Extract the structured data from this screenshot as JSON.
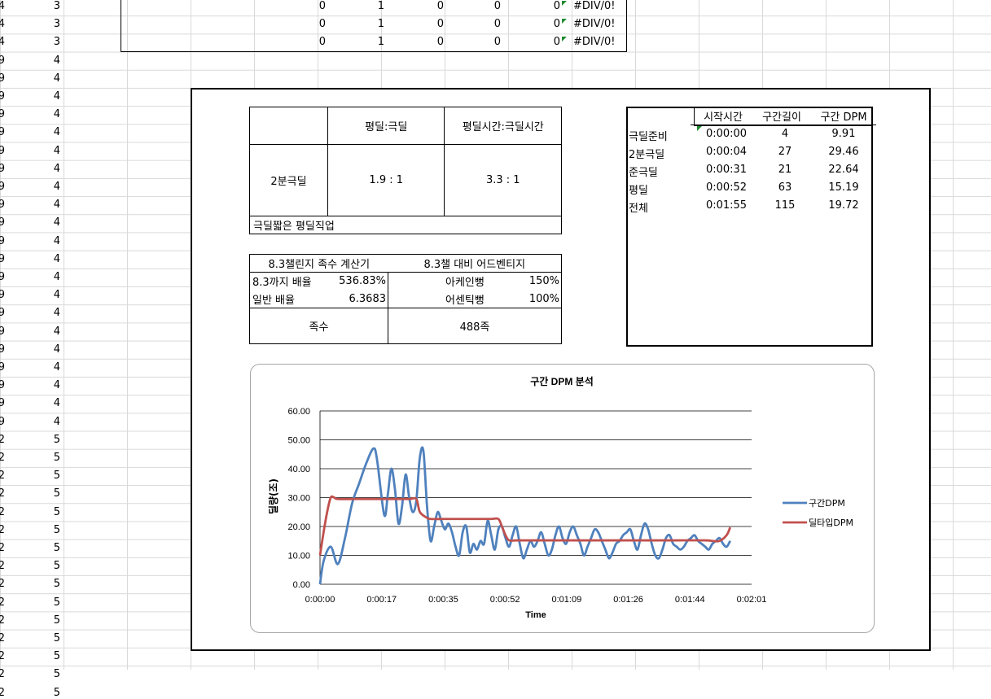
{
  "left_col_a": [
    "4",
    "4",
    "4",
    "9",
    "9",
    "9",
    "9",
    "9",
    "9",
    "9",
    "9",
    "9",
    "9",
    "9",
    "9",
    "9",
    "9",
    "9",
    "9",
    "9",
    "9",
    "9",
    "9",
    "9",
    "2",
    "2",
    "2",
    "2",
    "2",
    "2",
    "2",
    "2",
    "2",
    "2",
    "2",
    "2",
    "2",
    "2",
    "2"
  ],
  "left_col_b": [
    "3",
    "3",
    "3",
    "4",
    "4",
    "4",
    "4",
    "4",
    "4",
    "4",
    "4",
    "4",
    "4",
    "4",
    "4",
    "4",
    "4",
    "4",
    "4",
    "4",
    "4",
    "4",
    "4",
    "4",
    "5",
    "5",
    "5",
    "5",
    "5",
    "5",
    "5",
    "5",
    "5",
    "5",
    "5",
    "5",
    "5",
    "5",
    "5"
  ],
  "top_rows": [
    {
      "c1": "0",
      "c2": "1",
      "c3": "0",
      "c4": "0",
      "c5": "0",
      "err": "#DIV/0!"
    },
    {
      "c1": "0",
      "c2": "1",
      "c3": "0",
      "c4": "0",
      "c5": "0",
      "err": "#DIV/0!"
    },
    {
      "c1": "0",
      "c2": "1",
      "c3": "0",
      "c4": "0",
      "c5": "0",
      "err": "#DIV/0!"
    }
  ],
  "ratio_table": {
    "col1": "평딜:극딜",
    "col2": "평딜시간:극딜시간",
    "row_label": "2분극딜",
    "val1": "1.9 : 1",
    "val2": "3.3 : 1",
    "note": "극딜짧은 평딜직업"
  },
  "calc_table": {
    "title1": "8.3챌린지 족수 계산기",
    "title2": "8.3챌 대비 어드벤티지",
    "r1_label": "8.3까지 배율",
    "r1_val": "536.83%",
    "r1_label2": "아케인뻥",
    "r1_val2": "150%",
    "r2_label": "일반 배율",
    "r2_val": "6.3683",
    "r2_label2": "어센틱뻥",
    "r2_val2": "100%",
    "result_label": "족수",
    "result_val": "488족"
  },
  "segment_table": {
    "headers": [
      "시작시간",
      "구간길이",
      "구간 DPM"
    ],
    "rows": [
      {
        "name": "극딜준비",
        "start": "0:00:00",
        "len": "4",
        "dpm": "9.91"
      },
      {
        "name": "2분극딜",
        "start": "0:00:04",
        "len": "27",
        "dpm": "29.46"
      },
      {
        "name": "준극딜",
        "start": "0:00:31",
        "len": "21",
        "dpm": "22.64"
      },
      {
        "name": "평딜",
        "start": "0:00:52",
        "len": "63",
        "dpm": "15.19"
      },
      {
        "name": "전체",
        "start": "0:01:55",
        "len": "115",
        "dpm": "19.72"
      }
    ]
  },
  "chart_data": {
    "type": "line",
    "title": "구간 DPM 분석",
    "xlabel": "Time",
    "ylabel": "딜량(조)",
    "x_ticks": [
      "0:00:00",
      "0:00:17",
      "0:00:35",
      "0:00:52",
      "0:01:09",
      "0:01:26",
      "0:01:44",
      "0:02:01"
    ],
    "y_ticks": [
      "0.00",
      "10.00",
      "20.00",
      "30.00",
      "40.00",
      "50.00",
      "60.00"
    ],
    "xlim": [
      0,
      121
    ],
    "ylim": [
      0,
      60
    ],
    "grid": true,
    "legend": "right",
    "series": [
      {
        "name": "구간DPM",
        "color": "#4f81bd",
        "x": [
          0,
          1,
          3,
          5,
          7,
          9,
          11,
          13,
          15,
          16,
          18,
          19,
          20,
          21,
          22,
          23,
          24,
          25,
          26,
          27,
          28,
          29,
          30,
          31,
          32,
          33,
          34,
          35,
          36,
          37,
          38,
          39,
          40,
          41,
          42,
          43,
          44,
          45,
          46,
          47,
          48,
          49,
          50,
          51,
          52,
          53,
          54,
          55,
          56,
          57,
          58,
          59,
          60,
          61,
          62,
          63,
          64,
          65,
          66,
          67,
          68,
          69,
          70,
          71,
          72,
          73,
          74,
          75,
          76,
          77,
          78,
          79,
          80,
          81,
          82,
          83,
          84,
          85,
          86,
          87,
          88,
          89,
          90,
          91,
          92,
          93,
          94,
          95,
          96,
          97,
          98,
          99,
          100,
          101,
          102,
          103,
          104,
          105,
          106,
          107,
          108,
          109,
          110,
          111,
          112,
          113,
          114,
          115
        ],
        "y": [
          0,
          8,
          13,
          7,
          16,
          28,
          35,
          42,
          47,
          43,
          24,
          31,
          40,
          33,
          21,
          27,
          38,
          30,
          25,
          29,
          44,
          46,
          27,
          15,
          20,
          25,
          22,
          19,
          21,
          18,
          13,
          10,
          18,
          20,
          11,
          14,
          12,
          15,
          14,
          22,
          17,
          12,
          19,
          20,
          16,
          13,
          17,
          20,
          14,
          9,
          12,
          15,
          13,
          15,
          18,
          14,
          10,
          12,
          17,
          20,
          16,
          14,
          18,
          20,
          17,
          14,
          10,
          13,
          16,
          19,
          18,
          15,
          12,
          9,
          11,
          14,
          15,
          17,
          18,
          19,
          15,
          12,
          17,
          21,
          19,
          14,
          10,
          9,
          12,
          16,
          17,
          14,
          13,
          12,
          13,
          15,
          16,
          17,
          15,
          14,
          13,
          12,
          14,
          15,
          16,
          14,
          13,
          15
        ],
        "note_visible": false
      },
      {
        "name": "딜타입DPM",
        "color": "#c0504d",
        "x": [
          0,
          1,
          2,
          3,
          4,
          5,
          10,
          20,
          25,
          27,
          28,
          30,
          31,
          35,
          40,
          45,
          48,
          50,
          51,
          52,
          53,
          55,
          60,
          70,
          80,
          90,
          100,
          108,
          110,
          112,
          114,
          115
        ],
        "y": [
          10,
          18,
          25,
          30,
          30,
          29.5,
          29.5,
          29.5,
          29.5,
          29.5,
          25,
          23,
          22.6,
          22.6,
          22.6,
          22.6,
          22.6,
          22.6,
          20,
          17,
          15.2,
          15.2,
          15.2,
          15.2,
          15.2,
          15.2,
          15.2,
          15.2,
          15,
          15,
          17,
          19.7
        ]
      }
    ]
  }
}
